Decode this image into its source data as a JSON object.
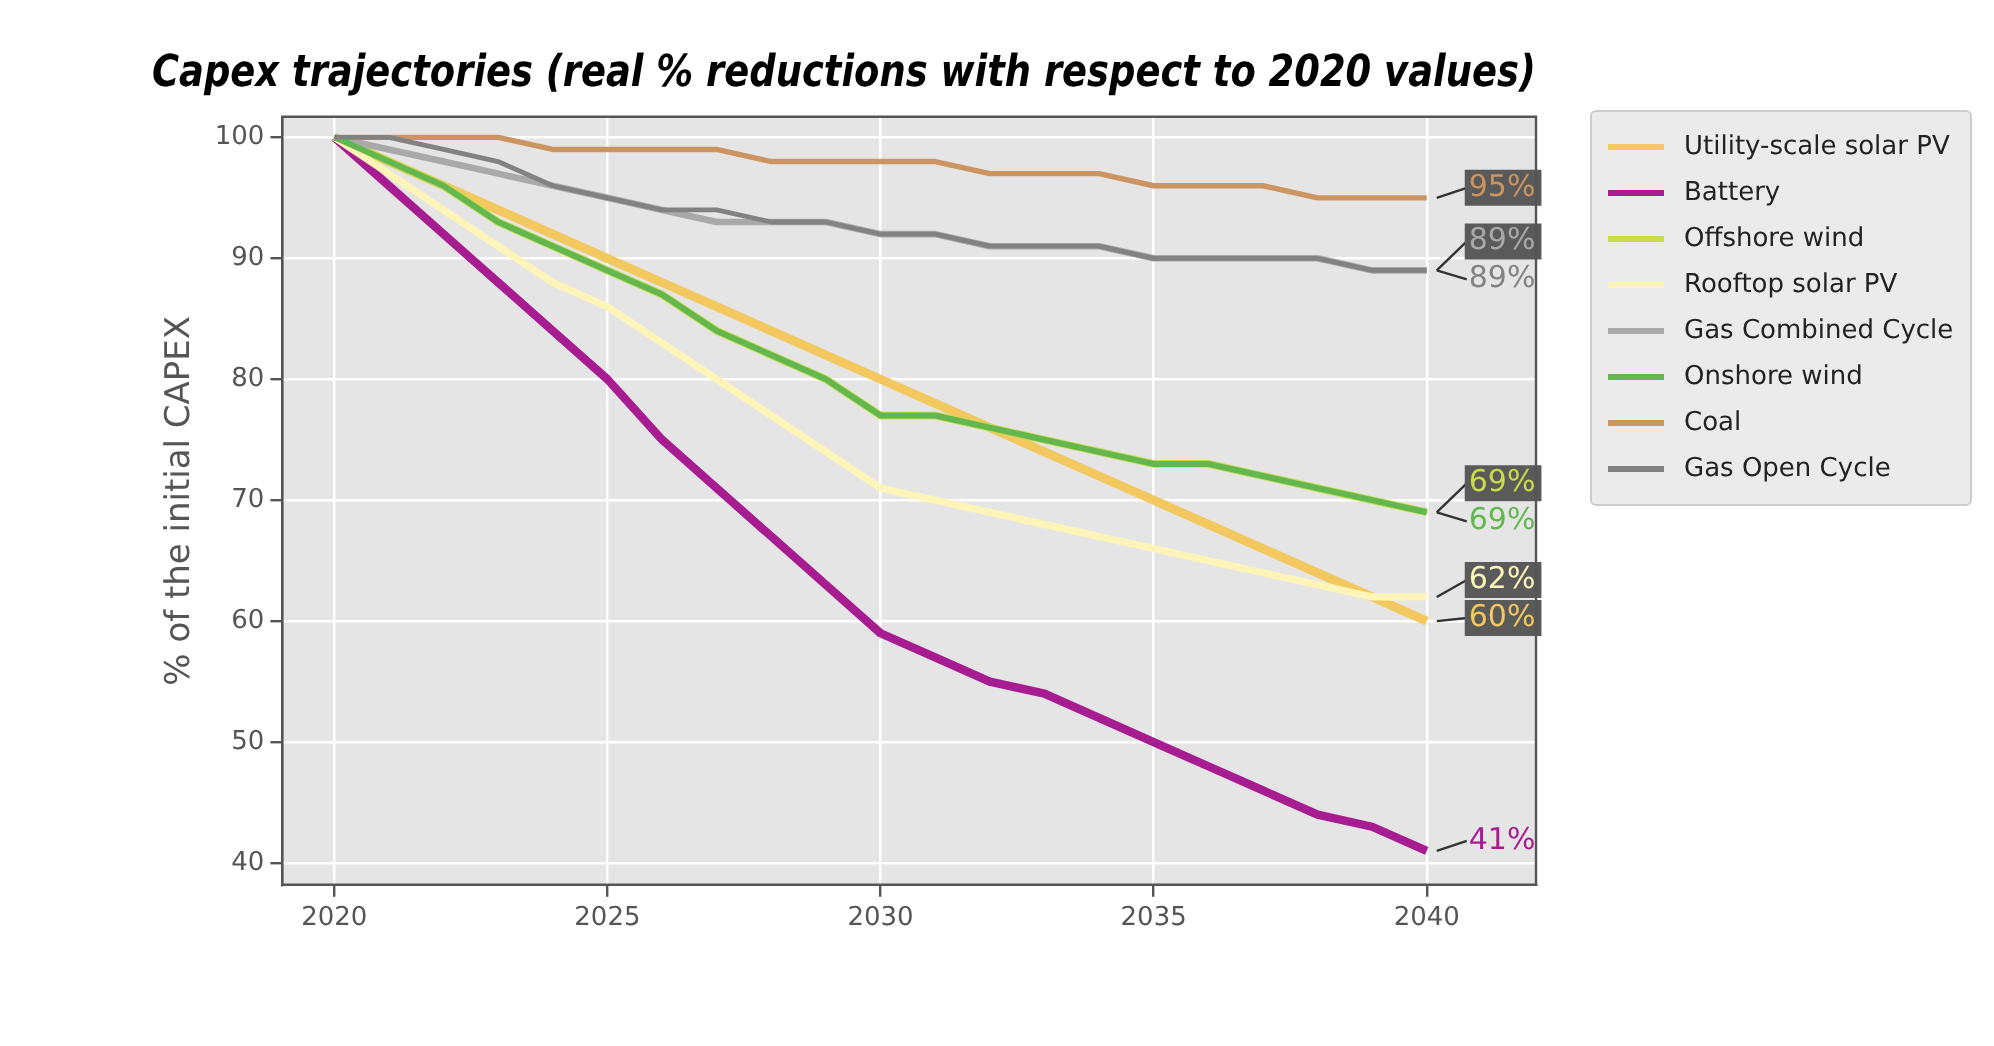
{
  "chart_data": {
    "type": "line",
    "title": "Capex trajectories (real % reductions with respect to 2020 values)",
    "ylabel": "% of the initial CAPEX",
    "x": [
      2020,
      2021,
      2022,
      2023,
      2024,
      2025,
      2026,
      2027,
      2028,
      2029,
      2030,
      2031,
      2032,
      2033,
      2034,
      2035,
      2036,
      2037,
      2038,
      2039,
      2040
    ],
    "xlim": [
      2019.05,
      2042
    ],
    "xticks": [
      2020,
      2025,
      2030,
      2035,
      2040
    ],
    "ylim": [
      38.2,
      101.7
    ],
    "yticks": [
      40,
      50,
      60,
      70,
      80,
      90,
      100
    ],
    "grid": true,
    "legend": "right",
    "marker": "none",
    "line_style": "solid",
    "series": [
      {
        "name": "Utility-scale solar PV",
        "color": "#f2c85f",
        "values": [
          100,
          98,
          96,
          94,
          92,
          90,
          88,
          86,
          84,
          82,
          80,
          78,
          76,
          74,
          72,
          70,
          68,
          66,
          64,
          62,
          60
        ],
        "value_labels": [
          null,
          null,
          null,
          null,
          null,
          null,
          null,
          null,
          null,
          null,
          null,
          null,
          null,
          null,
          null,
          null,
          null,
          null,
          null,
          null,
          "60%"
        ]
      },
      {
        "name": "Battery",
        "color": "#a81c92",
        "values": [
          100,
          96,
          92,
          88,
          84,
          80,
          75,
          71,
          67,
          63,
          59,
          57,
          55,
          54,
          52,
          50,
          48,
          46,
          44,
          43,
          41
        ],
        "value_labels": [
          null,
          null,
          null,
          null,
          null,
          null,
          null,
          null,
          null,
          null,
          null,
          null,
          null,
          null,
          null,
          null,
          null,
          null,
          null,
          null,
          "41%"
        ]
      },
      {
        "name": "Offshore wind",
        "color": "#c8dc48",
        "values": [
          100,
          98,
          96,
          93,
          91,
          89,
          87,
          84,
          82,
          80,
          77,
          77,
          76,
          75,
          74,
          73,
          73,
          72,
          71,
          70,
          69
        ],
        "value_labels": [
          null,
          null,
          null,
          null,
          null,
          null,
          null,
          null,
          null,
          null,
          null,
          null,
          null,
          null,
          null,
          null,
          null,
          null,
          null,
          null,
          "69%"
        ]
      },
      {
        "name": "Rooftop solar PV",
        "color": "#fdf5b8",
        "values": [
          100,
          97,
          94,
          91,
          88,
          86,
          83,
          80,
          77,
          74,
          71,
          70,
          69,
          68,
          67,
          66,
          65,
          64,
          63,
          62,
          62
        ],
        "value_labels": [
          null,
          null,
          null,
          null,
          null,
          null,
          null,
          null,
          null,
          null,
          null,
          null,
          null,
          null,
          null,
          null,
          null,
          null,
          null,
          null,
          "62%"
        ]
      },
      {
        "name": "Gas Combined Cycle",
        "color": "#a9a9a9",
        "values": [
          100,
          99,
          98,
          97,
          96,
          95,
          94,
          93,
          93,
          93,
          92,
          92,
          91,
          91,
          91,
          90,
          90,
          90,
          90,
          89,
          89
        ],
        "value_labels": [
          null,
          null,
          null,
          null,
          null,
          null,
          null,
          null,
          null,
          null,
          null,
          null,
          null,
          null,
          null,
          null,
          null,
          null,
          null,
          null,
          "89%"
        ]
      },
      {
        "name": "Onshore wind",
        "color": "#62b84f",
        "values": [
          100,
          98,
          96,
          93,
          91,
          89,
          87,
          84,
          82,
          80,
          77,
          77,
          76,
          75,
          74,
          73,
          73,
          72,
          71,
          70,
          69
        ],
        "value_labels": [
          null,
          null,
          null,
          null,
          null,
          null,
          null,
          null,
          null,
          null,
          null,
          null,
          null,
          null,
          null,
          null,
          null,
          null,
          null,
          null,
          "69%"
        ]
      },
      {
        "name": "Coal",
        "color": "#cc9560",
        "values": [
          100,
          100,
          100,
          100,
          99,
          99,
          99,
          99,
          98,
          98,
          98,
          98,
          97,
          97,
          97,
          96,
          96,
          96,
          95,
          95,
          95
        ],
        "value_labels": [
          null,
          null,
          null,
          null,
          null,
          null,
          null,
          null,
          null,
          null,
          null,
          null,
          null,
          null,
          null,
          null,
          null,
          null,
          null,
          null,
          "95%"
        ]
      },
      {
        "name": "Gas Open Cycle",
        "color": "#828282",
        "values": [
          100,
          100,
          99,
          98,
          96,
          95,
          94,
          94,
          93,
          93,
          92,
          92,
          91,
          91,
          91,
          90,
          90,
          90,
          90,
          89,
          89
        ],
        "value_labels": [
          null,
          null,
          null,
          null,
          null,
          null,
          null,
          null,
          null,
          null,
          null,
          null,
          null,
          null,
          null,
          null,
          null,
          null,
          null,
          null,
          "89%"
        ]
      }
    ]
  }
}
